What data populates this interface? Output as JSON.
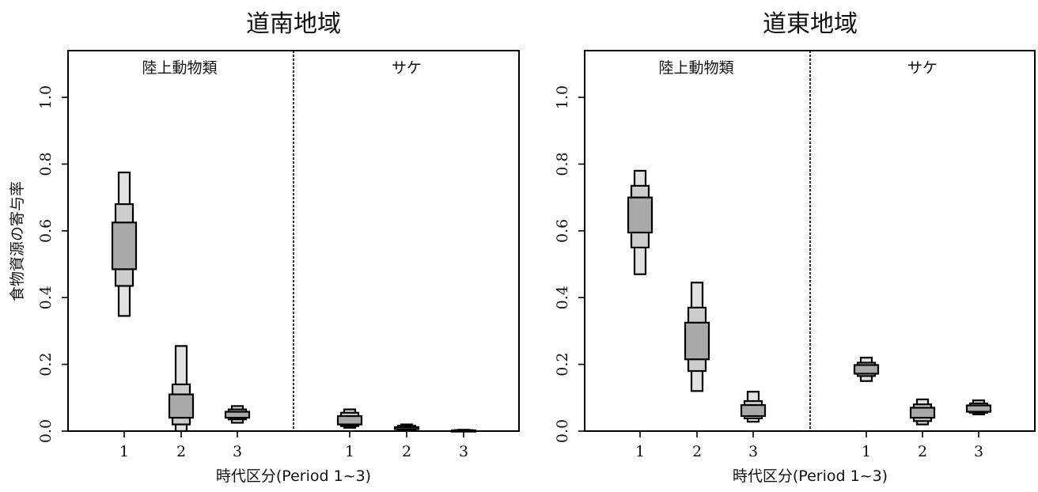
{
  "ylabel": "食物資源の寄与率",
  "chart_data": [
    {
      "type": "boxplot",
      "title": "道南地域",
      "xlabel": "時代区分(Period 1~3)",
      "ylim": [
        0,
        1.14
      ],
      "yticks": [
        "0.0",
        "0.2",
        "0.4",
        "0.6",
        "0.8",
        "1.0"
      ],
      "groups": [
        {
          "label": "陸上動物類",
          "categories": [
            "1",
            "2",
            "3"
          ],
          "intervals": [
            {
              "outer": [
                0.345,
                0.775
              ],
              "mid": [
                0.435,
                0.68
              ],
              "inner": [
                0.485,
                0.625
              ]
            },
            {
              "outer": [
                0.0,
                0.255
              ],
              "mid": [
                0.02,
                0.14
              ],
              "inner": [
                0.04,
                0.11
              ]
            },
            {
              "outer": [
                0.025,
                0.075
              ],
              "mid": [
                0.035,
                0.065
              ],
              "inner": [
                0.04,
                0.058
              ]
            }
          ]
        },
        {
          "label": "サケ",
          "categories": [
            "1",
            "2",
            "3"
          ],
          "intervals": [
            {
              "outer": [
                0.01,
                0.065
              ],
              "mid": [
                0.015,
                0.055
              ],
              "inner": [
                0.02,
                0.045
              ]
            },
            {
              "outer": [
                0.002,
                0.02
              ],
              "mid": [
                0.004,
                0.016
              ],
              "inner": [
                0.006,
                0.012
              ]
            },
            {
              "outer": [
                0.0,
                0.004
              ],
              "mid": [
                0.0,
                0.003
              ],
              "inner": [
                0.0,
                0.002
              ]
            }
          ]
        }
      ]
    },
    {
      "type": "boxplot",
      "title": "道東地域",
      "xlabel": "時代区分(Period 1~3)",
      "ylim": [
        0,
        1.14
      ],
      "yticks": [
        "0.0",
        "0.2",
        "0.4",
        "0.6",
        "0.8",
        "1.0"
      ],
      "groups": [
        {
          "label": "陸上動物類",
          "categories": [
            "1",
            "2",
            "3"
          ],
          "intervals": [
            {
              "outer": [
                0.47,
                0.78
              ],
              "mid": [
                0.55,
                0.735
              ],
              "inner": [
                0.595,
                0.7
              ]
            },
            {
              "outer": [
                0.12,
                0.445
              ],
              "mid": [
                0.18,
                0.37
              ],
              "inner": [
                0.215,
                0.325
              ]
            },
            {
              "outer": [
                0.028,
                0.118
              ],
              "mid": [
                0.038,
                0.09
              ],
              "inner": [
                0.045,
                0.078
              ]
            }
          ]
        },
        {
          "label": "サケ",
          "categories": [
            "1",
            "2",
            "3"
          ],
          "intervals": [
            {
              "outer": [
                0.15,
                0.22
              ],
              "mid": [
                0.165,
                0.205
              ],
              "inner": [
                0.172,
                0.198
              ]
            },
            {
              "outer": [
                0.02,
                0.095
              ],
              "mid": [
                0.03,
                0.08
              ],
              "inner": [
                0.04,
                0.07
              ]
            },
            {
              "outer": [
                0.05,
                0.092
              ],
              "mid": [
                0.055,
                0.083
              ],
              "inner": [
                0.058,
                0.077
              ]
            }
          ]
        }
      ]
    }
  ]
}
